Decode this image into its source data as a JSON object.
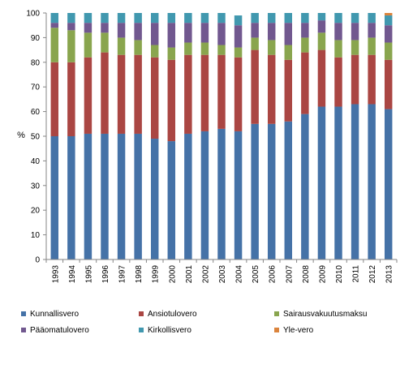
{
  "chart_data": {
    "type": "bar",
    "stacked": true,
    "ylabel": "%",
    "ylim": [
      0,
      100
    ],
    "yticks": [
      0,
      10,
      20,
      30,
      40,
      50,
      60,
      70,
      80,
      90,
      100
    ],
    "grid": false,
    "legend_position": "bottom",
    "categories": [
      "1993",
      "1994",
      "1995",
      "1996",
      "1997",
      "1998",
      "1999",
      "2000",
      "2001",
      "2002",
      "2003",
      "2004",
      "2005",
      "2006",
      "2007",
      "2008",
      "2009",
      "2010",
      "2011",
      "2012",
      "2013"
    ],
    "series": [
      {
        "name": "Kunnallisvero",
        "color": "#4572A7",
        "values": [
          50,
          50,
          51,
          51,
          51,
          51,
          49,
          48,
          51,
          52,
          53,
          52,
          55,
          55,
          56,
          59,
          62,
          62,
          63,
          63,
          61
        ]
      },
      {
        "name": "Ansiotulovero",
        "color": "#AA4643",
        "values": [
          30,
          30,
          31,
          33,
          32,
          32,
          33,
          33,
          32,
          31,
          30,
          30,
          30,
          28,
          25,
          25,
          23,
          20,
          20,
          20,
          20
        ]
      },
      {
        "name": "Sairausvakuutusmaksu",
        "color": "#89A54E",
        "values": [
          14,
          13,
          10,
          8,
          7,
          6,
          5,
          5,
          5,
          5,
          4,
          4,
          5,
          6,
          6,
          6,
          7,
          7,
          6,
          7,
          7
        ]
      },
      {
        "name": "Pääomatulovero",
        "color": "#71588F",
        "values": [
          2,
          3,
          4,
          4,
          6,
          7,
          9,
          10,
          8,
          8,
          9,
          9,
          6,
          7,
          9,
          6,
          5,
          7,
          7,
          6,
          7
        ]
      },
      {
        "name": "Kirkollisvero",
        "color": "#4198AF",
        "values": [
          4,
          4,
          4,
          4,
          4,
          4,
          4,
          4,
          4,
          4,
          4,
          4,
          4,
          4,
          4,
          4,
          3,
          4,
          4,
          4,
          4
        ]
      },
      {
        "name": "Yle-vero",
        "color": "#DB843D",
        "values": [
          0,
          0,
          0,
          0,
          0,
          0,
          0,
          0,
          0,
          0,
          0,
          0,
          0,
          0,
          0,
          0,
          0,
          0,
          0,
          0,
          1
        ]
      }
    ]
  }
}
